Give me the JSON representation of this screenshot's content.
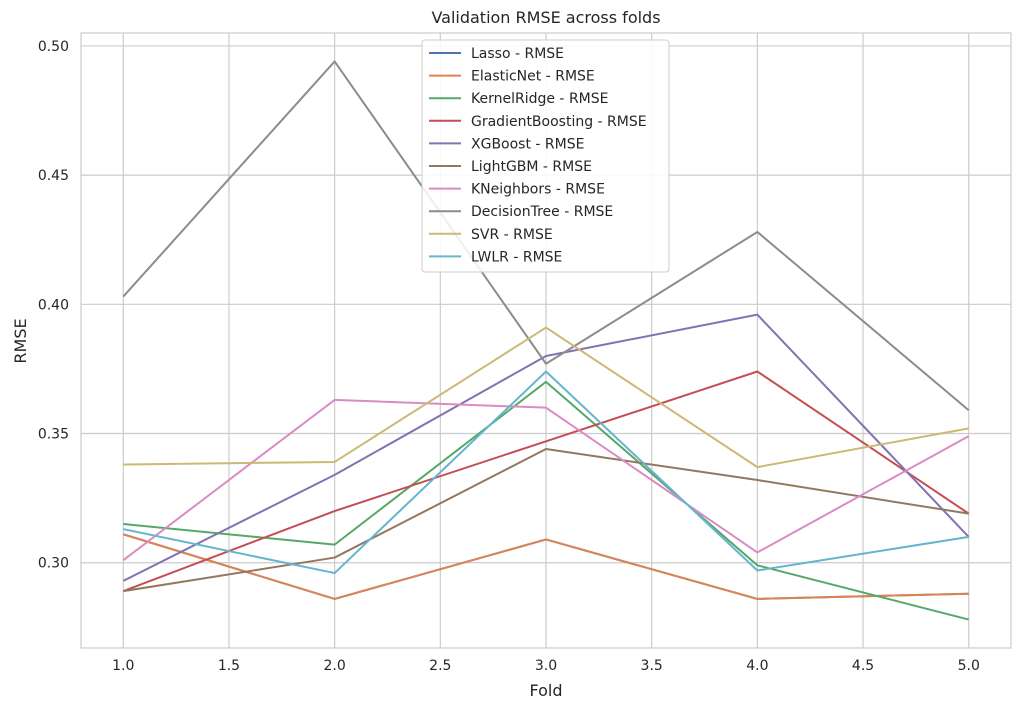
{
  "chart_data": {
    "type": "line",
    "title": "Validation RMSE across folds",
    "xlabel": "Fold",
    "ylabel": "RMSE",
    "xlim": [
      0.8,
      5.2
    ],
    "ylim": [
      0.267,
      0.505
    ],
    "xticks": [
      1.0,
      1.5,
      2.0,
      2.5,
      3.0,
      3.5,
      4.0,
      4.5,
      5.0
    ],
    "xtick_labels": [
      "1.0",
      "1.5",
      "2.0",
      "2.5",
      "3.0",
      "3.5",
      "4.0",
      "4.5",
      "5.0"
    ],
    "yticks": [
      0.3,
      0.35,
      0.4,
      0.45,
      0.5
    ],
    "ytick_labels": [
      "0.30",
      "0.35",
      "0.40",
      "0.45",
      "0.50"
    ],
    "grid": true,
    "legend_position": "top-center",
    "x": [
      1.0,
      2.0,
      3.0,
      4.0,
      5.0
    ],
    "series": [
      {
        "name": "Lasso - RMSE",
        "color": "#4c72b0",
        "values": [
          0.311,
          0.286,
          0.309,
          0.286,
          0.288
        ]
      },
      {
        "name": "ElasticNet - RMSE",
        "color": "#dd8452",
        "values": [
          0.311,
          0.286,
          0.309,
          0.286,
          0.288
        ]
      },
      {
        "name": "KernelRidge - RMSE",
        "color": "#55a868",
        "values": [
          0.315,
          0.307,
          0.37,
          0.299,
          0.278
        ]
      },
      {
        "name": "GradientBoosting - RMSE",
        "color": "#c44e52",
        "values": [
          0.289,
          0.32,
          0.347,
          0.374,
          0.319
        ]
      },
      {
        "name": "XGBoost - RMSE",
        "color": "#8172b3",
        "values": [
          0.293,
          0.334,
          0.38,
          0.396,
          0.31
        ]
      },
      {
        "name": "LightGBM - RMSE",
        "color": "#937860",
        "values": [
          0.289,
          0.302,
          0.344,
          0.332,
          0.319
        ]
      },
      {
        "name": "KNeighbors - RMSE",
        "color": "#da8bc3",
        "values": [
          0.301,
          0.363,
          0.36,
          0.304,
          0.349
        ]
      },
      {
        "name": "DecisionTree - RMSE",
        "color": "#8c8c8c",
        "values": [
          0.403,
          0.494,
          0.377,
          0.428,
          0.359
        ]
      },
      {
        "name": "SVR - RMSE",
        "color": "#ccb974",
        "values": [
          0.338,
          0.339,
          0.391,
          0.337,
          0.352
        ]
      },
      {
        "name": "LWLR - RMSE",
        "color": "#64b5cd",
        "values": [
          0.313,
          0.296,
          0.374,
          0.297,
          0.31
        ]
      }
    ]
  }
}
